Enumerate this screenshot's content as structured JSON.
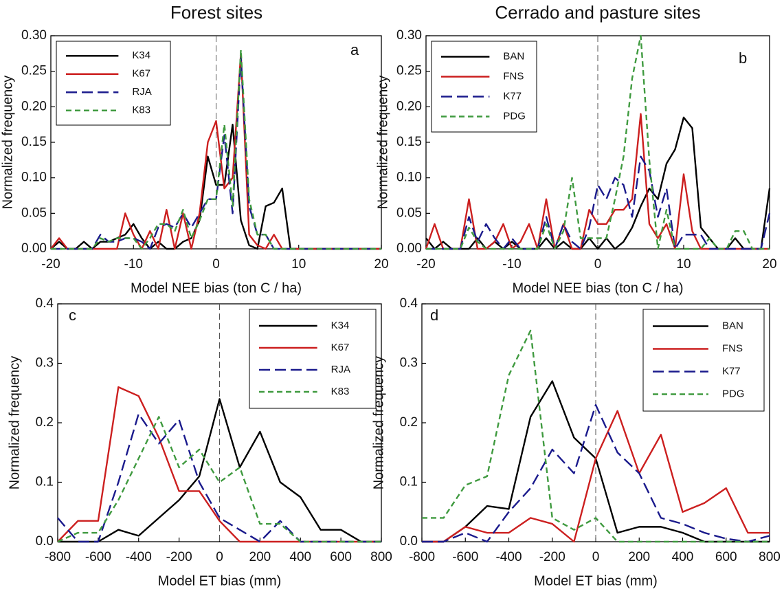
{
  "chart_data": [
    {
      "type": "line",
      "title": "Forest sites",
      "annotation": "a",
      "x_label": "Model NEE bias (ton C / ha)",
      "y_label": "Normalized frequency",
      "x": [
        -20,
        -19,
        -18,
        -17,
        -16,
        -15,
        -14,
        -13,
        -12,
        -11,
        -10,
        -9,
        -8,
        -7,
        -6,
        -5,
        -4,
        -3,
        -2,
        -1,
        0,
        1,
        2,
        3,
        4,
        5,
        6,
        7,
        8,
        9,
        10,
        11,
        12,
        13,
        14,
        15,
        16,
        17,
        18,
        19,
        20
      ],
      "series": [
        {
          "name": "K34",
          "color": "#000000",
          "style": "solid",
          "values": [
            0,
            0.01,
            0,
            0,
            0.01,
            0,
            0.01,
            0.01,
            0.015,
            0.02,
            0.035,
            0.015,
            0,
            0.01,
            0,
            0,
            0.01,
            0.015,
            0.04,
            0.13,
            0.09,
            0.09,
            0.175,
            0.04,
            0.005,
            0,
            0.06,
            0.065,
            0.085,
            0,
            0,
            0,
            0,
            0,
            0,
            0,
            0,
            0,
            0,
            0,
            0
          ]
        },
        {
          "name": "K67",
          "color": "#cc1f1f",
          "style": "solid",
          "values": [
            0,
            0.015,
            0,
            0,
            0,
            0,
            0,
            0,
            0,
            0.05,
            0.02,
            0,
            0.025,
            0,
            0.055,
            0,
            0.05,
            0,
            0.05,
            0.15,
            0.18,
            0.085,
            0.1,
            0.275,
            0.02,
            0.005,
            0,
            0.02,
            0,
            0,
            0,
            0,
            0,
            0,
            0,
            0,
            0,
            0,
            0,
            0,
            0
          ]
        },
        {
          "name": "RJA",
          "color": "#1a1a8c",
          "style": "long-dash",
          "values": [
            0,
            0,
            0,
            0,
            0,
            0,
            0.02,
            0.01,
            0.01,
            0.015,
            0.015,
            0.01,
            0,
            0.03,
            0.035,
            0.03,
            0.05,
            0.03,
            0.05,
            0.07,
            0.07,
            0.16,
            0.05,
            0.27,
            0.06,
            0.02,
            0.02,
            0,
            0,
            0,
            0,
            0,
            0,
            0,
            0,
            0,
            0,
            0,
            0,
            0,
            0
          ]
        },
        {
          "name": "K83",
          "color": "#3f9a3f",
          "style": "short-dash",
          "values": [
            0,
            0,
            0,
            0,
            0,
            0,
            0.015,
            0.01,
            0.015,
            0.015,
            0.015,
            0,
            0.015,
            0.035,
            0.035,
            0.025,
            0.055,
            0.015,
            0.04,
            0.07,
            0.07,
            0.175,
            0.06,
            0.28,
            0.07,
            0.02,
            0.02,
            0,
            0,
            0,
            0,
            0,
            0,
            0,
            0,
            0,
            0,
            0,
            0,
            0,
            0
          ]
        }
      ],
      "xlim": [
        -20,
        20
      ],
      "ylim": [
        0,
        0.3
      ],
      "xticks": [
        -20,
        -10,
        0,
        10,
        20
      ],
      "yticks": [
        {
          "value": 0,
          "label": "0.00"
        },
        {
          "value": 0.05,
          "label": "0.05"
        },
        {
          "value": 0.1,
          "label": "0.10"
        },
        {
          "value": 0.15,
          "label": "0.15"
        },
        {
          "value": 0.2,
          "label": "0.20"
        },
        {
          "value": 0.25,
          "label": "0.25"
        },
        {
          "value": 0.3,
          "label": "0.30"
        }
      ],
      "vline": 0,
      "legend": "upper left"
    },
    {
      "type": "line",
      "title": "Cerrado and pasture sites",
      "annotation": "b",
      "x_label": "Model NEE bias (ton C / ha)",
      "y_label": "Normalized frequency",
      "x": [
        -20,
        -19,
        -18,
        -17,
        -16,
        -15,
        -14,
        -13,
        -12,
        -11,
        -10,
        -9,
        -8,
        -7,
        -6,
        -5,
        -4,
        -3,
        -2,
        -1,
        0,
        1,
        2,
        3,
        4,
        5,
        6,
        7,
        8,
        9,
        10,
        11,
        12,
        13,
        14,
        15,
        16,
        17,
        18,
        19,
        20
      ],
      "series": [
        {
          "name": "BAN",
          "color": "#000000",
          "style": "solid",
          "values": [
            0.015,
            0,
            0.01,
            0,
            0,
            0,
            0.015,
            0,
            0.01,
            0,
            0.01,
            0,
            0,
            0,
            0.015,
            0,
            0.01,
            0,
            0,
            0.015,
            0,
            0.015,
            0,
            0.01,
            0.03,
            0.06,
            0.085,
            0.07,
            0.12,
            0.14,
            0.185,
            0.17,
            0.03,
            0.015,
            0,
            0,
            0.015,
            0,
            0,
            0,
            0.085
          ]
        },
        {
          "name": "FNS",
          "color": "#cc1f1f",
          "style": "solid",
          "values": [
            0,
            0.035,
            0,
            0,
            0,
            0.07,
            0,
            0,
            0.01,
            0.035,
            0,
            0.01,
            0.035,
            0,
            0.07,
            0,
            0.035,
            0,
            0,
            0.055,
            0.035,
            0.035,
            0.055,
            0.055,
            0.07,
            0.19,
            0.035,
            0.015,
            0.035,
            0,
            0.105,
            0.025,
            0,
            0,
            0,
            0,
            0,
            0,
            0,
            0,
            0
          ]
        },
        {
          "name": "K77",
          "color": "#1a1a8c",
          "style": "long-dash",
          "values": [
            0,
            0,
            0,
            0,
            0,
            0.045,
            0.01,
            0.035,
            0.015,
            0,
            0.015,
            0,
            0,
            0,
            0.045,
            0,
            0.035,
            0.01,
            0,
            0.03,
            0.09,
            0.07,
            0.1,
            0.09,
            0.045,
            0.13,
            0.11,
            0.045,
            0.085,
            0,
            0.02,
            0.02,
            0.02,
            0,
            0,
            0,
            0,
            0,
            0,
            0,
            0.05
          ]
        },
        {
          "name": "PDG",
          "color": "#3f9a3f",
          "style": "short-dash",
          "values": [
            0,
            0,
            0,
            0,
            0,
            0.03,
            0.01,
            0,
            0,
            0,
            0,
            0,
            0,
            0,
            0.035,
            0,
            0.025,
            0.1,
            0.015,
            0.015,
            0.015,
            0.015,
            0.07,
            0.13,
            0.24,
            0.3,
            0.125,
            0,
            0.055,
            0,
            0,
            0,
            0,
            0.015,
            0,
            0,
            0.025,
            0.025,
            0,
            0,
            0
          ]
        }
      ],
      "xlim": [
        -20,
        20
      ],
      "ylim": [
        0,
        0.3
      ],
      "xticks": [
        -20,
        -10,
        0,
        10,
        20
      ],
      "yticks": [
        {
          "value": 0,
          "label": "0.00"
        },
        {
          "value": 0.05,
          "label": "0.05"
        },
        {
          "value": 0.1,
          "label": "0.10"
        },
        {
          "value": 0.15,
          "label": "0.15"
        },
        {
          "value": 0.2,
          "label": "0.20"
        },
        {
          "value": 0.25,
          "label": "0.25"
        },
        {
          "value": 0.3,
          "label": "0.30"
        }
      ],
      "vline": 0,
      "legend": "upper left"
    },
    {
      "type": "line",
      "annotation": "c",
      "x_label": "Model ET bias (mm)",
      "y_label": "Normalized frequency",
      "x": [
        -800,
        -700,
        -600,
        -500,
        -400,
        -300,
        -200,
        -100,
        0,
        100,
        200,
        300,
        400,
        500,
        600,
        700,
        800
      ],
      "series": [
        {
          "name": "K34",
          "color": "#000000",
          "style": "solid",
          "values": [
            0,
            0,
            0,
            0.02,
            0.01,
            0.04,
            0.07,
            0.11,
            0.24,
            0.125,
            0.185,
            0.1,
            0.075,
            0.02,
            0.02,
            0,
            0
          ]
        },
        {
          "name": "K67",
          "color": "#cc1f1f",
          "style": "solid",
          "values": [
            0,
            0.035,
            0.035,
            0.26,
            0.245,
            0.175,
            0.085,
            0.085,
            0.035,
            0,
            0,
            0,
            0,
            0,
            0,
            0,
            0
          ]
        },
        {
          "name": "RJA",
          "color": "#1a1a8c",
          "style": "long-dash",
          "values": [
            0.04,
            0,
            0,
            0.1,
            0.215,
            0.165,
            0.205,
            0.1,
            0.04,
            0.02,
            0,
            0.035,
            0,
            0,
            0,
            0,
            0
          ]
        },
        {
          "name": "K83",
          "color": "#3f9a3f",
          "style": "short-dash",
          "values": [
            0,
            0.015,
            0.015,
            0.07,
            0.14,
            0.21,
            0.125,
            0.155,
            0.1,
            0.125,
            0.03,
            0.03,
            0,
            0,
            0,
            0,
            0
          ]
        }
      ],
      "xlim": [
        -800,
        800
      ],
      "ylim": [
        0,
        0.4
      ],
      "xticks": [
        -800,
        -600,
        -400,
        -200,
        0,
        200,
        400,
        600,
        800
      ],
      "yticks": [
        {
          "value": 0,
          "label": "0.0"
        },
        0.1,
        0.2,
        0.3,
        0.4
      ],
      "vline": 0,
      "legend": "upper right"
    },
    {
      "type": "line",
      "annotation": "d",
      "x_label": "Model ET bias (mm)",
      "y_label": "Normalized frequency",
      "x": [
        -800,
        -700,
        -600,
        -500,
        -400,
        -300,
        -200,
        -100,
        0,
        100,
        200,
        300,
        400,
        500,
        600,
        700,
        800
      ],
      "series": [
        {
          "name": "BAN",
          "color": "#000000",
          "style": "solid",
          "values": [
            0,
            0,
            0.025,
            0.06,
            0.055,
            0.21,
            0.27,
            0.175,
            0.14,
            0.015,
            0.025,
            0.025,
            0.015,
            0,
            0,
            0,
            0
          ]
        },
        {
          "name": "FNS",
          "color": "#cc1f1f",
          "style": "solid",
          "values": [
            0,
            0,
            0.025,
            0.015,
            0.015,
            0.04,
            0.03,
            0,
            0.14,
            0.22,
            0.115,
            0.18,
            0.05,
            0.065,
            0.09,
            0.015,
            0.015
          ]
        },
        {
          "name": "K77",
          "color": "#1a1a8c",
          "style": "long-dash",
          "values": [
            0,
            0,
            0.015,
            0,
            0.05,
            0.09,
            0.155,
            0.115,
            0.23,
            0.15,
            0.115,
            0.04,
            0.03,
            0.015,
            0.005,
            0,
            0.01
          ]
        },
        {
          "name": "PDG",
          "color": "#3f9a3f",
          "style": "short-dash",
          "values": [
            0.04,
            0.04,
            0.095,
            0.11,
            0.28,
            0.355,
            0.04,
            0.02,
            0.04,
            0,
            0,
            0,
            0,
            0,
            0,
            0,
            0
          ]
        }
      ],
      "xlim": [
        -800,
        800
      ],
      "ylim": [
        0,
        0.4
      ],
      "xticks": [
        -800,
        -600,
        -400,
        -200,
        0,
        200,
        400,
        600,
        800
      ],
      "yticks": [
        {
          "value": 0,
          "label": "0.0"
        },
        0.1,
        0.2,
        0.3,
        0.4
      ],
      "vline": 0,
      "legend": "upper right"
    }
  ]
}
